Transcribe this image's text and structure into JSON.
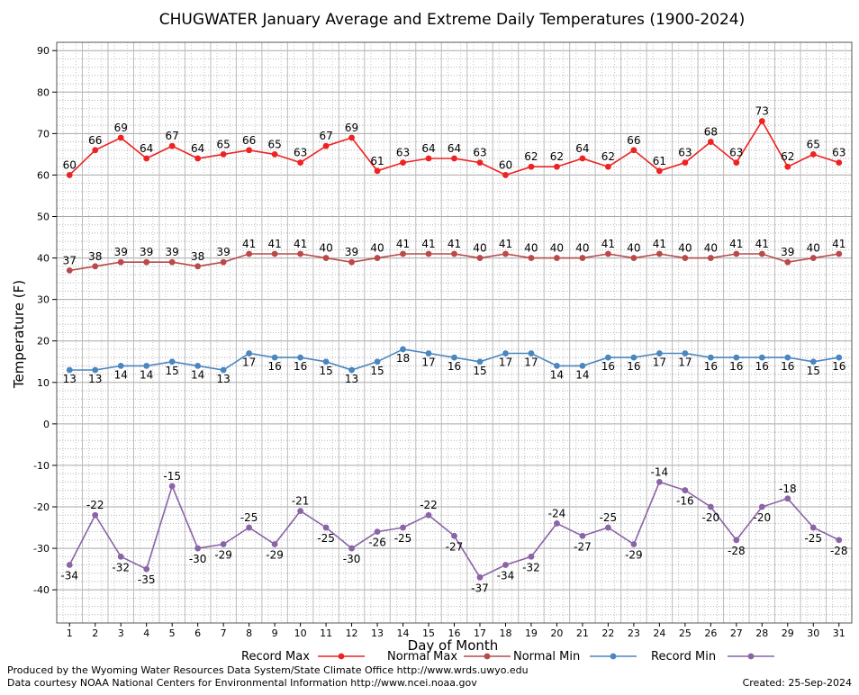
{
  "chart_data": {
    "type": "line",
    "title": "CHUGWATER January Average and Extreme Daily Temperatures (1900-2024)",
    "xlabel": "Day of Month",
    "ylabel": "Temperature (F)",
    "ylim": [
      -48,
      92
    ],
    "yticks": [
      90,
      80,
      70,
      60,
      50,
      40,
      30,
      20,
      10,
      0,
      -10,
      -20,
      -30,
      -40
    ],
    "grid": true,
    "legend_position": "bottom",
    "x": [
      1,
      2,
      3,
      4,
      5,
      6,
      7,
      8,
      9,
      10,
      11,
      12,
      13,
      14,
      15,
      16,
      17,
      18,
      19,
      20,
      21,
      22,
      23,
      24,
      25,
      26,
      27,
      28,
      29,
      30,
      31
    ],
    "series": [
      {
        "name": "Record Max",
        "color": "#ee2222",
        "values": [
          60,
          66,
          69,
          64,
          67,
          64,
          65,
          66,
          65,
          63,
          67,
          69,
          61,
          63,
          64,
          64,
          63,
          60,
          62,
          62,
          64,
          62,
          66,
          61,
          63,
          68,
          63,
          73,
          62,
          65,
          63
        ]
      },
      {
        "name": "Normal Max",
        "color": "#b84a4a",
        "values": [
          37,
          38,
          39,
          39,
          39,
          38,
          39,
          41,
          41,
          41,
          40,
          39,
          40,
          41,
          41,
          41,
          40,
          41,
          40,
          40,
          40,
          41,
          40,
          41,
          40,
          40,
          41,
          41,
          39,
          40,
          41
        ]
      },
      {
        "name": "Normal Min",
        "color": "#4a86c0",
        "values": [
          13,
          13,
          14,
          14,
          15,
          14,
          13,
          17,
          16,
          16,
          15,
          13,
          15,
          18,
          17,
          16,
          15,
          17,
          17,
          14,
          14,
          16,
          16,
          17,
          17,
          16,
          16,
          16,
          16,
          15,
          16
        ]
      },
      {
        "name": "Record Min",
        "color": "#8a64a6",
        "values": [
          -34,
          -22,
          -32,
          -35,
          -15,
          -30,
          -29,
          -25,
          -29,
          -21,
          -25,
          -30,
          -26,
          -25,
          -22,
          -27,
          -37,
          -34,
          -32,
          -24,
          -27,
          -25,
          -29,
          -14,
          -16,
          -20,
          -28,
          -20,
          -18,
          -25,
          -28
        ]
      }
    ]
  },
  "footer": {
    "produced_by": "Produced by the Wyoming Water Resources Data System/State Climate Office http://www.wrds.uwyo.edu",
    "courtesy": "Data courtesy NOAA National Centers for Environmental Information http://www.ncei.noaa.gov",
    "created": "Created:  25-Sep-2024"
  }
}
